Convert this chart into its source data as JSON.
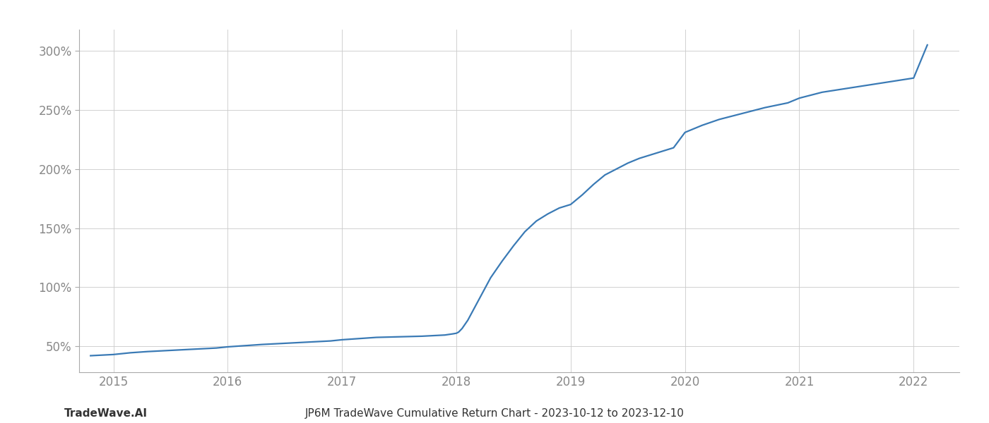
{
  "title_center": "JP6M TradeWave Cumulative Return Chart - 2023-10-12 to 2023-12-10",
  "title_left": "TradeWave.AI",
  "line_color": "#3a7ab5",
  "background_color": "#ffffff",
  "grid_color": "#cccccc",
  "x_years": [
    2015,
    2016,
    2017,
    2018,
    2019,
    2020,
    2021,
    2022
  ],
  "xlim": [
    2014.7,
    2022.4
  ],
  "ylim": [
    28,
    318
  ],
  "yticks": [
    50,
    100,
    150,
    200,
    250,
    300
  ],
  "x_data": [
    2014.8,
    2015.0,
    2015.15,
    2015.3,
    2015.5,
    2015.7,
    2015.9,
    2016.0,
    2016.15,
    2016.3,
    2016.5,
    2016.7,
    2016.9,
    2017.0,
    2017.15,
    2017.3,
    2017.5,
    2017.7,
    2017.9,
    2017.97,
    2018.0,
    2018.02,
    2018.05,
    2018.1,
    2018.2,
    2018.3,
    2018.4,
    2018.5,
    2018.6,
    2018.7,
    2018.8,
    2018.9,
    2019.0,
    2019.1,
    2019.2,
    2019.3,
    2019.4,
    2019.5,
    2019.6,
    2019.7,
    2019.8,
    2019.9,
    2020.0,
    2020.15,
    2020.3,
    2020.5,
    2020.7,
    2020.9,
    2021.0,
    2021.2,
    2021.4,
    2021.6,
    2021.8,
    2022.0,
    2022.12
  ],
  "y_data": [
    42,
    43,
    44.5,
    45.5,
    46.5,
    47.5,
    48.5,
    49.5,
    50.5,
    51.5,
    52.5,
    53.5,
    54.5,
    55.5,
    56.5,
    57.5,
    58.0,
    58.5,
    59.5,
    60.5,
    61.0,
    62.0,
    65.0,
    72,
    90,
    108,
    122,
    135,
    147,
    156,
    162,
    167,
    170,
    178,
    187,
    195,
    200,
    205,
    209,
    212,
    215,
    218,
    231,
    237,
    242,
    247,
    252,
    256,
    260,
    265,
    268,
    271,
    274,
    277,
    305
  ],
  "tick_label_color": "#888888",
  "spine_color": "#aaaaaa",
  "title_fontsize": 11,
  "tick_fontsize": 12,
  "line_width": 1.6
}
